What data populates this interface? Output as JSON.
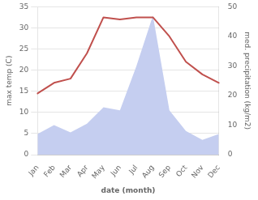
{
  "chart_data": {
    "type": "line",
    "xlabel": "date (month)",
    "ylabel": "max temp (C)",
    "y2label": "med. precipitation (kg/m2)",
    "categories": [
      "Jan",
      "Feb",
      "Mar",
      "Apr",
      "May",
      "Jun",
      "Jul",
      "Aug",
      "Sep",
      "Oct",
      "Nov",
      "Dec"
    ],
    "series": [
      {
        "type": "area",
        "axis": "y2",
        "color": "#c5cef0",
        "values": [
          7.0,
          10.0,
          7.5,
          10.5,
          16.0,
          15.0,
          30.0,
          47.0,
          15.0,
          8.0,
          5.0,
          7.0
        ]
      },
      {
        "type": "line",
        "color": "#c0504d",
        "values": [
          14.5,
          17.0,
          18.0,
          24.0,
          32.5,
          32.0,
          32.5,
          32.5,
          28.0,
          22.0,
          19.0,
          17.0
        ]
      }
    ],
    "ylim": [
      0,
      35
    ],
    "yticks": [
      0,
      5,
      10,
      15,
      20,
      25,
      30,
      35
    ],
    "y2lim": [
      0,
      50
    ],
    "y2ticks": [
      0,
      10,
      20,
      30,
      40,
      50
    ],
    "grid": "y"
  }
}
